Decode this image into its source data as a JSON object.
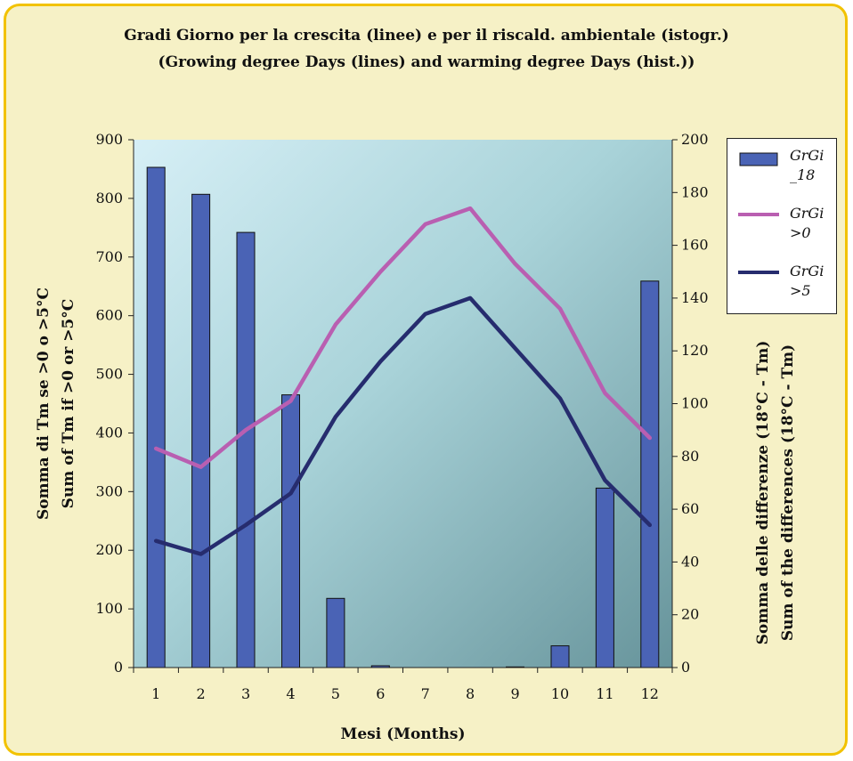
{
  "title_lines": [
    "Gradi Giorno per la crescita (linee) e per il riscald. ambientale (istogr.)",
    "(Growing degree Days (lines) and warming degree Days (hist.))"
  ],
  "colors": {
    "frame_border": "#f2c200",
    "frame_bg": "#f6f1c6",
    "bar_fill": "#4a63b5",
    "line_gt0": "#b95fb1",
    "line_gt5": "#262c6e"
  },
  "chart_data": {
    "type": "bar",
    "xlabel": "Mesi (Months)",
    "ylabel_lines": [
      "Somma di Tm se >0 o >5°C",
      "Sum of Tm if >0 or >5°C"
    ],
    "y2label_lines": [
      "Somma delle differenze (18°C - Tm)",
      "Sum of the differences (18°C - Tm)"
    ],
    "categories": [
      "1",
      "2",
      "3",
      "4",
      "5",
      "6",
      "7",
      "8",
      "9",
      "10",
      "11",
      "12"
    ],
    "ylim": [
      0,
      900
    ],
    "yticks": [
      "0",
      "100",
      "200",
      "300",
      "400",
      "500",
      "600",
      "700",
      "800",
      "900"
    ],
    "y2lim": [
      0,
      200
    ],
    "y2ticks": [
      "0",
      "20",
      "40",
      "60",
      "80",
      "100",
      "120",
      "140",
      "160",
      "180",
      "200"
    ],
    "legend_position": "right",
    "series": [
      {
        "name": "GrGi _18",
        "type": "bar",
        "axis": "left",
        "values": [
          853,
          807,
          742,
          465,
          118,
          3,
          0,
          0,
          1,
          37,
          306,
          659
        ]
      },
      {
        "name": "GrGi >0",
        "type": "line",
        "axis": "right",
        "values": [
          83,
          76,
          90,
          101,
          130,
          150,
          168,
          174,
          153,
          136,
          104,
          87
        ]
      },
      {
        "name": "GrGi >5",
        "type": "line",
        "axis": "right",
        "values": [
          48,
          43,
          54,
          66,
          95,
          116,
          134,
          140,
          121,
          102,
          71,
          54
        ]
      }
    ]
  },
  "legend": [
    {
      "label": "GrGi\n_18",
      "swatch": "bar"
    },
    {
      "label": "GrGi\n>0",
      "swatch": "line_gt0"
    },
    {
      "label": "GrGi\n>5",
      "swatch": "line_gt5"
    }
  ]
}
